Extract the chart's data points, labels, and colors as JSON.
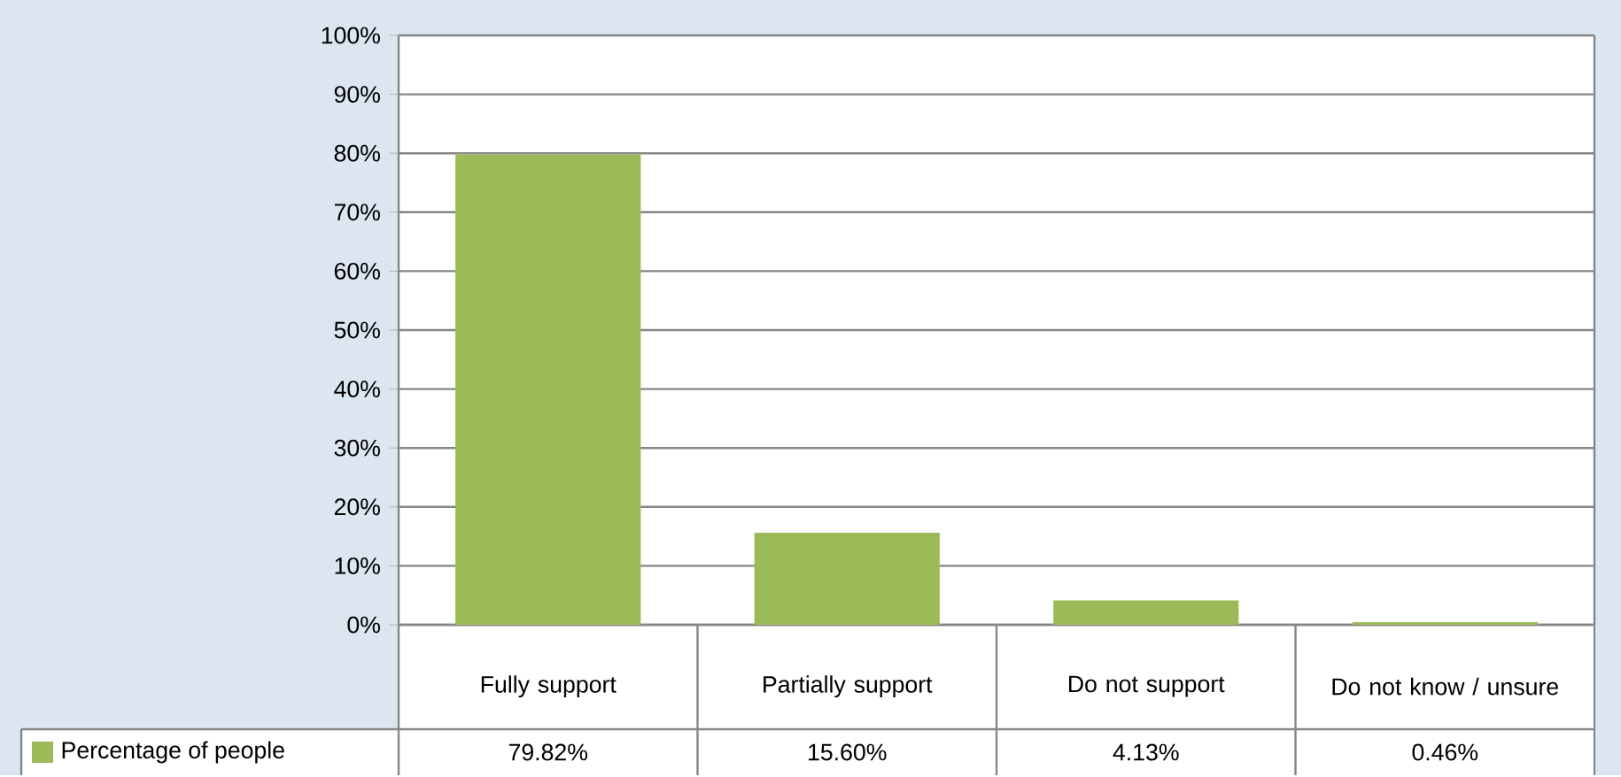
{
  "chart_data": {
    "type": "bar",
    "categories": [
      "Fully support",
      "Partially support",
      "Do not support",
      "Do not know / unsure"
    ],
    "series": [
      {
        "name": "Percentage of people",
        "color": "#9bbb59",
        "values": [
          79.82,
          15.6,
          4.13,
          0.46
        ],
        "value_labels": [
          "79.82%",
          "15.60%",
          "4.13%",
          "0.46%"
        ]
      }
    ],
    "ylim": [
      0,
      100
    ],
    "yticks": [
      {
        "value": 0,
        "label": "0%"
      },
      {
        "value": 10,
        "label": "10%"
      },
      {
        "value": 20,
        "label": "20%"
      },
      {
        "value": 30,
        "label": "30%"
      },
      {
        "value": 40,
        "label": "40%"
      },
      {
        "value": 50,
        "label": "50%"
      },
      {
        "value": 60,
        "label": "60%"
      },
      {
        "value": 70,
        "label": "70%"
      },
      {
        "value": 80,
        "label": "80%"
      },
      {
        "value": 90,
        "label": "90%"
      },
      {
        "value": 100,
        "label": "100%"
      }
    ],
    "grid": "y",
    "legend": "bottom"
  }
}
